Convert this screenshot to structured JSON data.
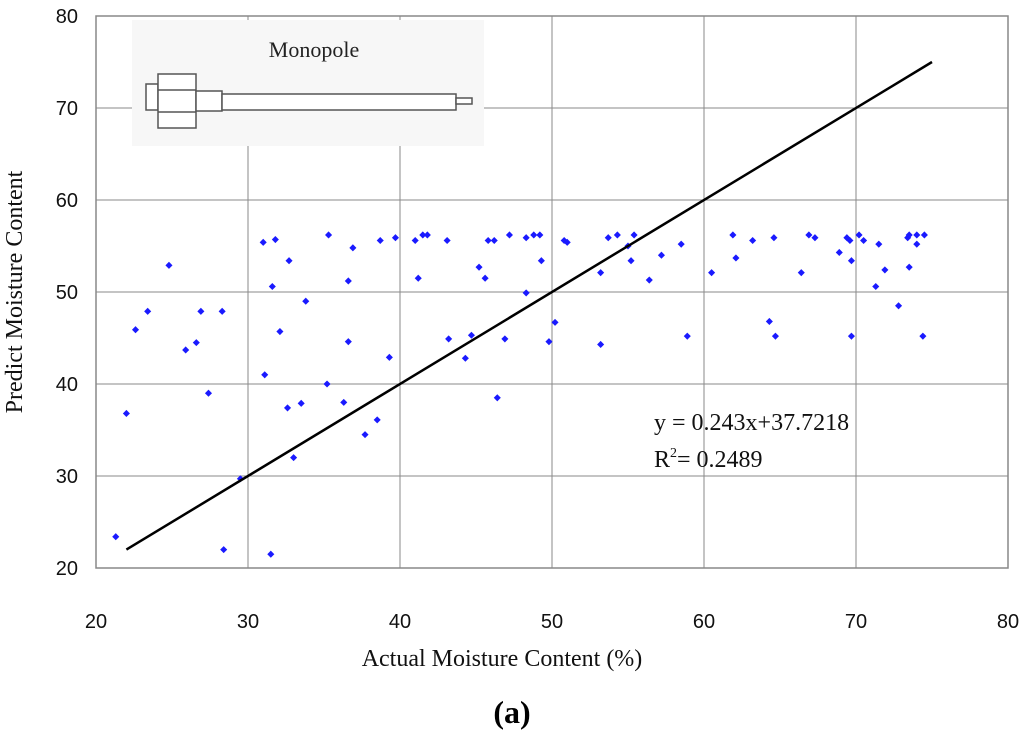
{
  "caption": "(a)",
  "chart_data": {
    "type": "scatter",
    "title": "",
    "xlabel": "Actual Moisture Content (%)",
    "ylabel": "Predict Moisture Content",
    "xlim": [
      20,
      80
    ],
    "ylim": [
      20,
      80
    ],
    "xticks": [
      20,
      30,
      40,
      50,
      60,
      70,
      80
    ],
    "yticks": [
      20,
      30,
      40,
      50,
      60,
      70,
      80
    ],
    "grid": true,
    "point_color": "#1a1aff",
    "line_color": "#000000",
    "inset": {
      "label": "Monopole",
      "icon": "monopole-antenna-icon"
    },
    "trendline": {
      "x": [
        22,
        75
      ],
      "y": [
        22,
        75
      ],
      "equation": "y = 0.243x+37.7218",
      "r2_prefix": "R",
      "r2_sup": "2",
      "r2_value": "= 0.2489"
    },
    "points": [
      [
        21.3,
        23.4
      ],
      [
        22.0,
        36.8
      ],
      [
        22.6,
        45.9
      ],
      [
        23.4,
        47.9
      ],
      [
        24.8,
        52.9
      ],
      [
        25.9,
        43.7
      ],
      [
        26.6,
        44.5
      ],
      [
        26.9,
        47.9
      ],
      [
        27.4,
        39.0
      ],
      [
        28.3,
        47.9
      ],
      [
        28.4,
        22.0
      ],
      [
        29.5,
        29.7
      ],
      [
        31.0,
        55.4
      ],
      [
        31.1,
        41.0
      ],
      [
        31.5,
        21.5
      ],
      [
        31.6,
        50.6
      ],
      [
        31.8,
        55.7
      ],
      [
        32.1,
        45.7
      ],
      [
        32.6,
        37.4
      ],
      [
        32.7,
        53.4
      ],
      [
        33.0,
        32.0
      ],
      [
        33.5,
        37.9
      ],
      [
        33.8,
        49.0
      ],
      [
        35.2,
        40.0
      ],
      [
        35.3,
        56.2
      ],
      [
        36.3,
        38.0
      ],
      [
        36.6,
        44.6
      ],
      [
        36.6,
        51.2
      ],
      [
        36.9,
        54.8
      ],
      [
        37.7,
        34.5
      ],
      [
        38.5,
        36.1
      ],
      [
        38.7,
        55.6
      ],
      [
        39.3,
        42.9
      ],
      [
        39.7,
        55.9
      ],
      [
        41.0,
        55.6
      ],
      [
        41.2,
        51.5
      ],
      [
        41.5,
        56.2
      ],
      [
        41.8,
        56.2
      ],
      [
        43.1,
        55.6
      ],
      [
        43.2,
        44.9
      ],
      [
        44.3,
        42.8
      ],
      [
        44.7,
        45.3
      ],
      [
        45.2,
        52.7
      ],
      [
        45.6,
        51.5
      ],
      [
        45.8,
        55.6
      ],
      [
        46.2,
        55.6
      ],
      [
        46.4,
        38.5
      ],
      [
        46.9,
        44.9
      ],
      [
        47.2,
        56.2
      ],
      [
        48.3,
        55.9
      ],
      [
        48.3,
        49.9
      ],
      [
        48.8,
        56.2
      ],
      [
        49.2,
        56.2
      ],
      [
        49.3,
        53.4
      ],
      [
        49.8,
        44.6
      ],
      [
        50.2,
        46.7
      ],
      [
        50.8,
        55.6
      ],
      [
        51.0,
        55.4
      ],
      [
        53.2,
        52.1
      ],
      [
        53.2,
        44.3
      ],
      [
        53.7,
        55.9
      ],
      [
        54.3,
        56.2
      ],
      [
        55.2,
        53.4
      ],
      [
        55.4,
        56.2
      ],
      [
        55.0,
        55.0
      ],
      [
        56.4,
        51.3
      ],
      [
        57.2,
        54.0
      ],
      [
        58.5,
        55.2
      ],
      [
        58.9,
        45.2
      ],
      [
        60.5,
        52.1
      ],
      [
        61.9,
        56.2
      ],
      [
        62.1,
        53.7
      ],
      [
        63.2,
        55.6
      ],
      [
        64.3,
        46.8
      ],
      [
        64.6,
        55.9
      ],
      [
        64.7,
        45.2
      ],
      [
        66.4,
        52.1
      ],
      [
        66.9,
        56.2
      ],
      [
        67.3,
        55.9
      ],
      [
        68.9,
        54.3
      ],
      [
        69.4,
        55.9
      ],
      [
        69.6,
        55.6
      ],
      [
        69.7,
        53.4
      ],
      [
        69.7,
        45.2
      ],
      [
        70.2,
        56.2
      ],
      [
        70.5,
        55.6
      ],
      [
        71.3,
        50.6
      ],
      [
        71.5,
        55.2
      ],
      [
        71.9,
        52.4
      ],
      [
        72.8,
        48.5
      ],
      [
        73.4,
        55.9
      ],
      [
        73.5,
        56.2
      ],
      [
        73.5,
        52.7
      ],
      [
        74.0,
        56.2
      ],
      [
        74.0,
        55.2
      ],
      [
        74.5,
        56.2
      ],
      [
        74.4,
        45.2
      ]
    ]
  }
}
